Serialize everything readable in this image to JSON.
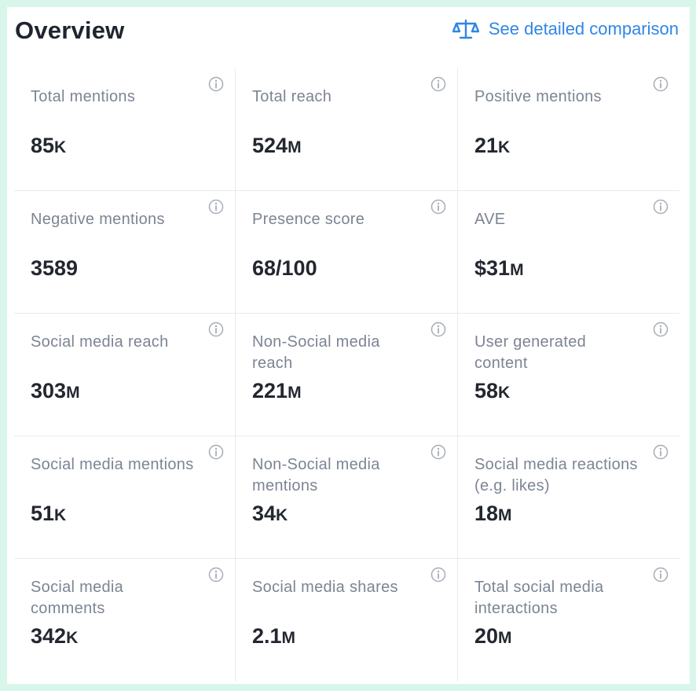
{
  "header": {
    "title": "Overview",
    "compare_label": "See detailed comparison",
    "compare_icon": "scale-icon"
  },
  "colors": {
    "accent": "#2f86e6",
    "background": "#d8f6ea",
    "label": "#7c8593",
    "value": "#23272f"
  },
  "metrics": [
    {
      "label": "Total mentions",
      "value": "85",
      "unit": "K"
    },
    {
      "label": "Total reach",
      "value": "524",
      "unit": "M"
    },
    {
      "label": "Positive mentions",
      "value": "21",
      "unit": "K"
    },
    {
      "label": "Negative mentions",
      "value": "3589",
      "unit": ""
    },
    {
      "label": "Presence score",
      "value": "68/100",
      "unit": ""
    },
    {
      "label": "AVE",
      "value": "$31",
      "unit": "M"
    },
    {
      "label": "Social media reach",
      "value": "303",
      "unit": "M"
    },
    {
      "label": "Non-Social media reach",
      "value": "221",
      "unit": "M"
    },
    {
      "label": "User generated content",
      "value": "58",
      "unit": "K"
    },
    {
      "label": "Social media mentions",
      "value": "51",
      "unit": "K"
    },
    {
      "label": "Non-Social media mentions",
      "value": "34",
      "unit": "K"
    },
    {
      "label": "Social media reactions (e.g. likes)",
      "value": "18",
      "unit": "M"
    },
    {
      "label": "Social media comments",
      "value": "342",
      "unit": "K"
    },
    {
      "label": "Social media shares",
      "value": "2.1",
      "unit": "M"
    },
    {
      "label": "Total social media interactions",
      "value": "20",
      "unit": "M"
    }
  ]
}
